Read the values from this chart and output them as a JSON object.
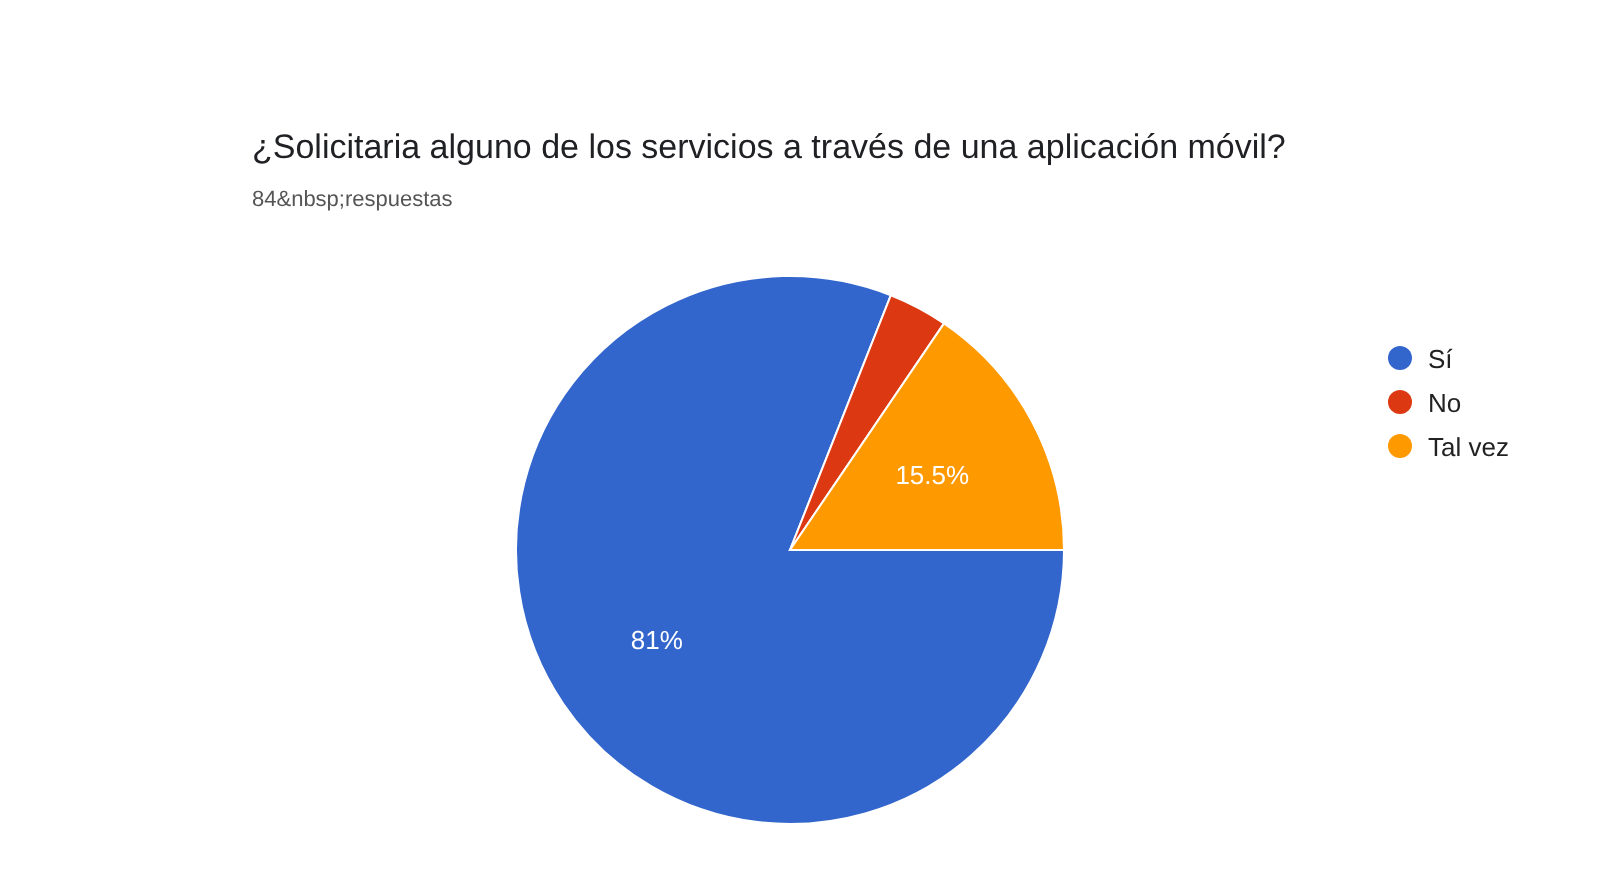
{
  "chart_data": {
    "type": "pie",
    "title": "¿Solicitaria alguno de los servicios a través de una aplicación móvil?",
    "subtitle": "84&nbsp;respuestas",
    "categories": [
      "Sí",
      "No",
      "Tal vez"
    ],
    "values": [
      81,
      3.5,
      15.5
    ],
    "colors": [
      "#3366cc",
      "#dc3912",
      "#ff9900"
    ],
    "value_labels": [
      "81%",
      null,
      "15.5%"
    ],
    "legend": "right"
  }
}
